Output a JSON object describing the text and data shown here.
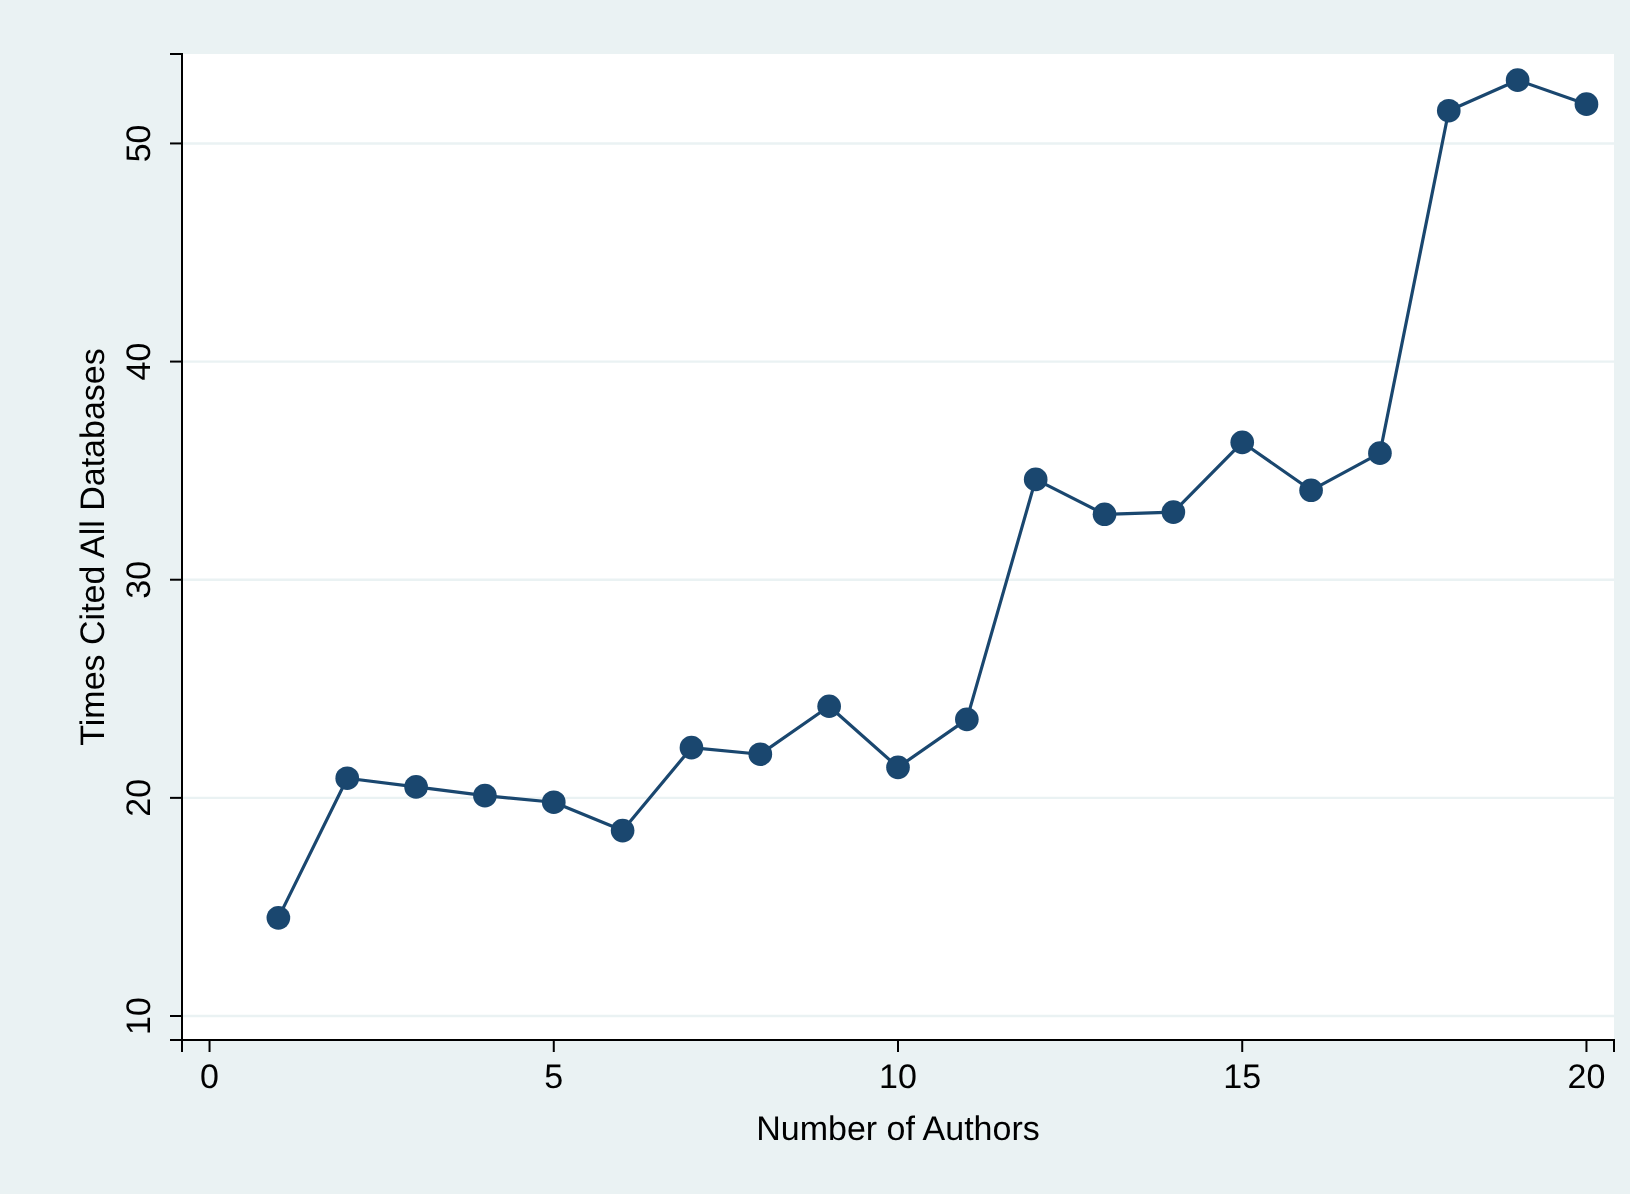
{
  "chart_data": {
    "type": "line",
    "xlabel": "Number of Authors",
    "ylabel": "Times Cited All Databases",
    "x": [
      1,
      2,
      3,
      4,
      5,
      6,
      7,
      8,
      9,
      10,
      11,
      12,
      13,
      14,
      15,
      16,
      17,
      18,
      19,
      20
    ],
    "series": [
      {
        "color": "#1a476f",
        "values": [
          14.5,
          20.9,
          20.5,
          20.1,
          19.8,
          18.5,
          22.3,
          22.0,
          24.2,
          21.4,
          23.6,
          34.6,
          33.0,
          33.1,
          36.3,
          34.1,
          35.8,
          51.5,
          52.9,
          51.8
        ]
      }
    ],
    "xlim": [
      -0.4,
      20.4
    ],
    "xticks": [
      0,
      5,
      10,
      15,
      20
    ],
    "ylim": [
      8.9,
      54.1
    ],
    "yticks": [
      10,
      20,
      30,
      40,
      50
    ],
    "grid": "y",
    "marker": "circle",
    "line_style": "solid"
  }
}
